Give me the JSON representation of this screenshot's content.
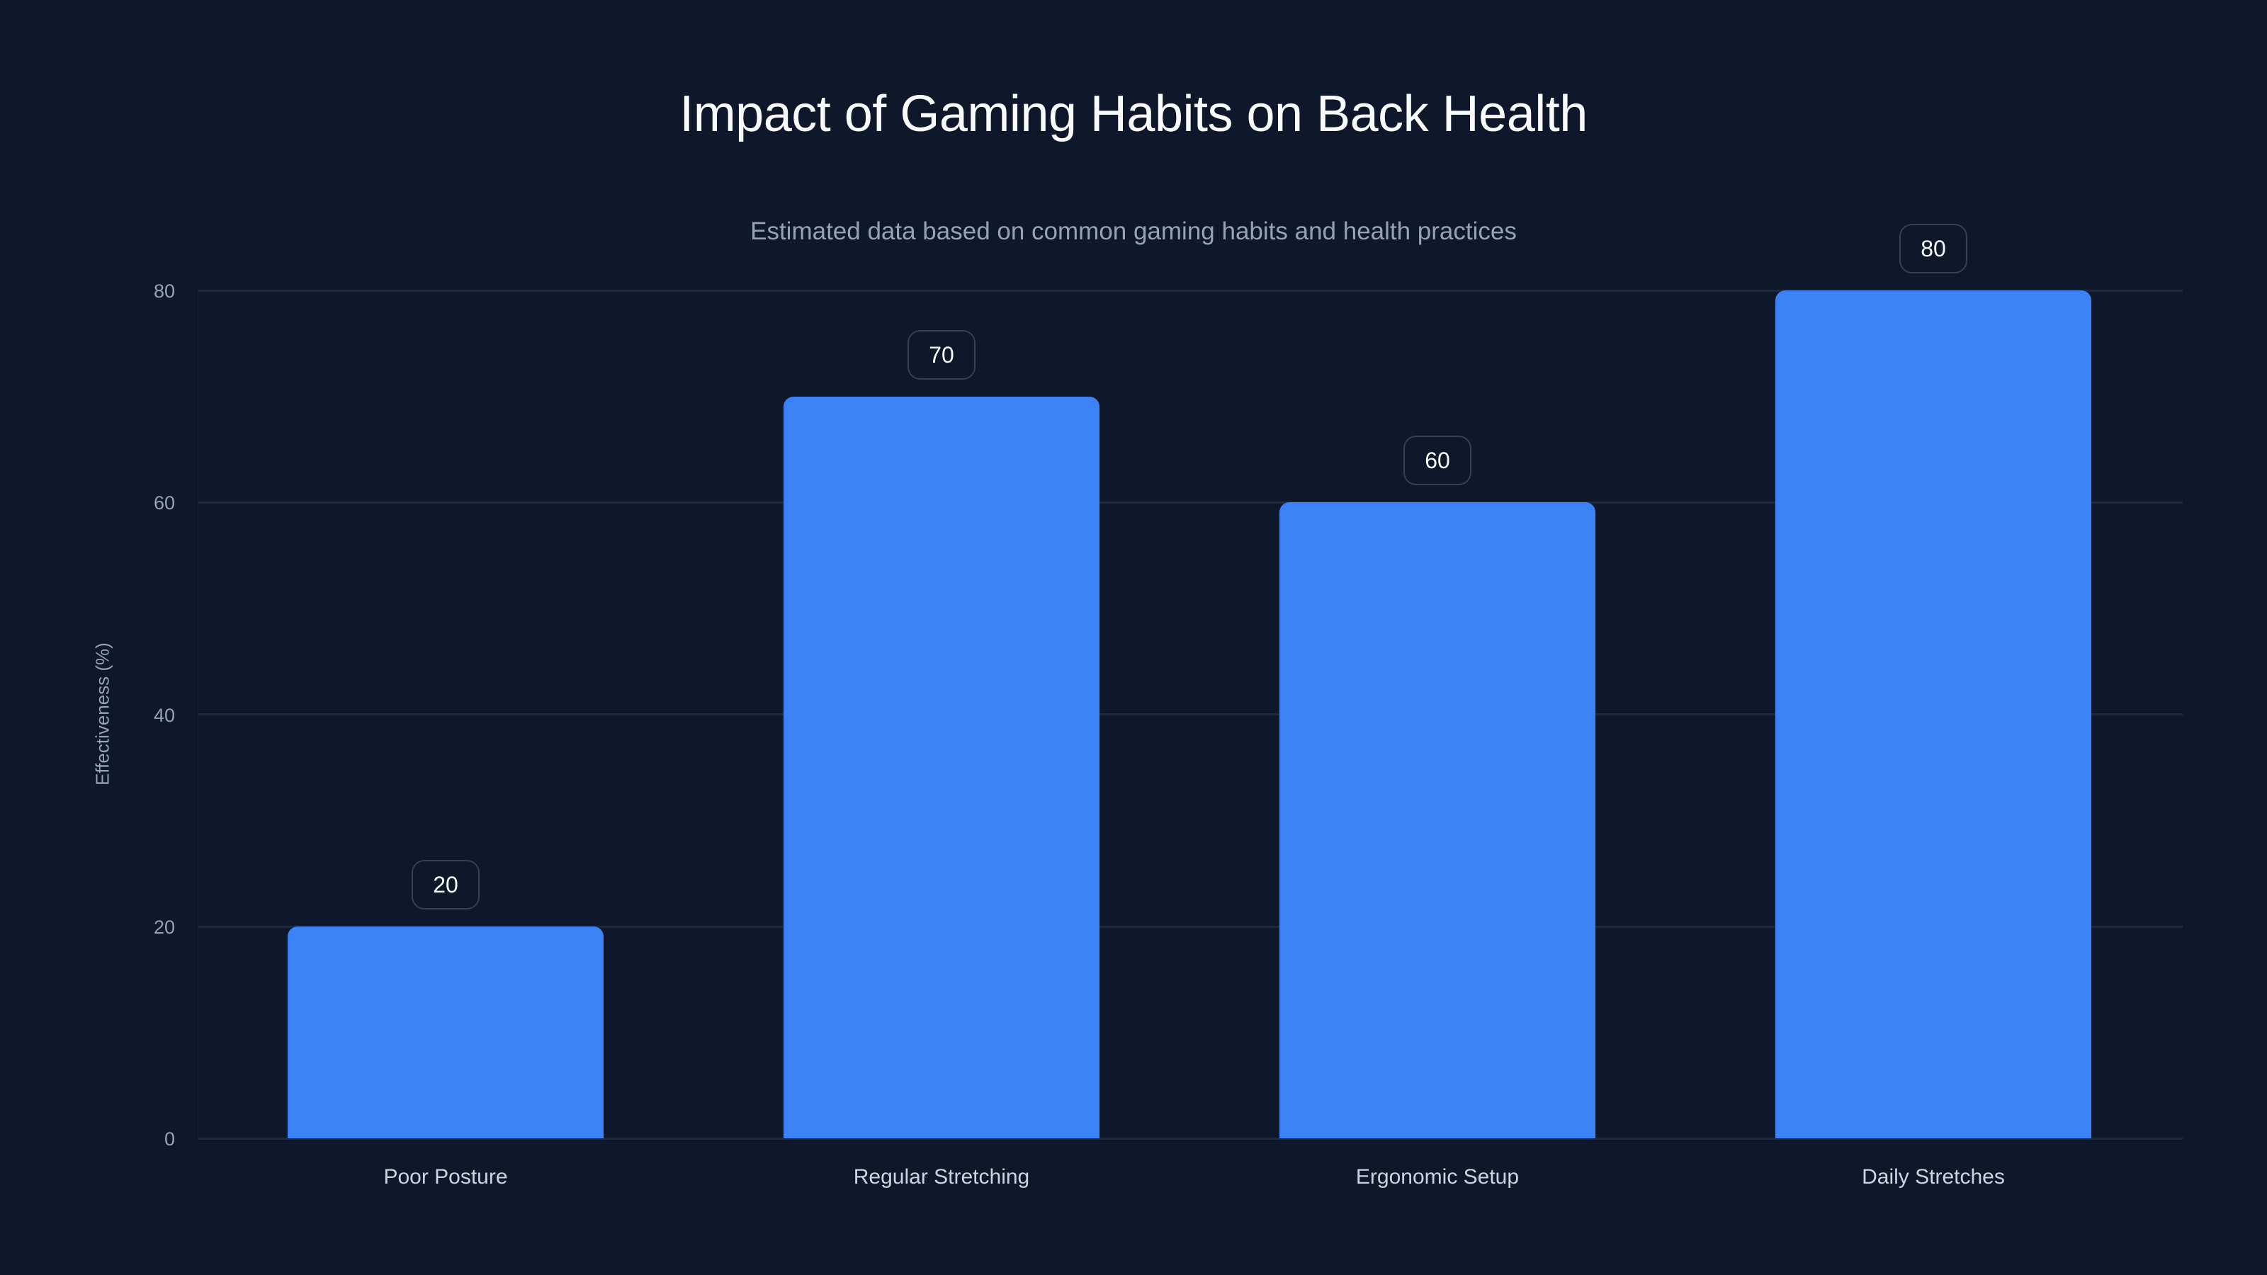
{
  "chart": {
    "title": "Impact of Gaming Habits on Back Health",
    "subtitle": "Estimated data based on common gaming habits and health practices",
    "y_axis_label": "Effectiveness (%)",
    "y_ticks": [
      "0",
      "20",
      "40",
      "60",
      "80"
    ],
    "bar_color": "#3b82f6",
    "background_color": "#0f172a",
    "bars": [
      {
        "category": "Poor Posture",
        "value": 20,
        "label": "20"
      },
      {
        "category": "Regular Stretching",
        "value": 70,
        "label": "70"
      },
      {
        "category": "Ergonomic Setup",
        "value": 60,
        "label": "60"
      },
      {
        "category": "Daily Stretches",
        "value": 80,
        "label": "80"
      }
    ]
  },
  "chart_data": {
    "type": "bar",
    "title": "Impact of Gaming Habits on Back Health",
    "subtitle": "Estimated data based on common gaming habits and health practices",
    "categories": [
      "Poor Posture",
      "Regular Stretching",
      "Ergonomic Setup",
      "Daily Stretches"
    ],
    "values": [
      20,
      70,
      60,
      80
    ],
    "xlabel": "",
    "ylabel": "Effectiveness (%)",
    "ylim": [
      0,
      80
    ],
    "yticks": [
      0,
      20,
      40,
      60,
      80
    ],
    "grid": true,
    "legend": null,
    "data_labels": true,
    "colors": [
      "#3b82f6"
    ]
  }
}
